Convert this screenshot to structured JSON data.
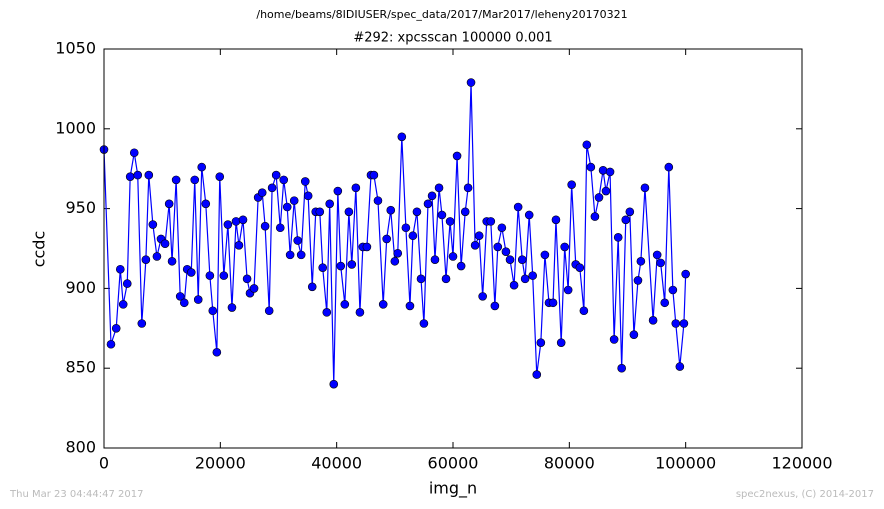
{
  "chart_data": {
    "type": "line",
    "suptitle": "/home/beams/8IDIUSER/spec_data/2017/Mar2017/leheny20170321",
    "title": "#292: xpcsscan 100000 0.001",
    "xlabel": "img_n",
    "ylabel": "ccdc",
    "annotations": [
      "Thu Mar 23 04:44:47 2017",
      "spec2nexus, (C) 2014-2017"
    ],
    "color": "#0000ff",
    "xlim": [
      0,
      120000
    ],
    "xticks": [
      0,
      20000,
      40000,
      60000,
      80000,
      100000,
      120000
    ],
    "ylim": [
      800,
      1050
    ],
    "yticks": [
      800,
      850,
      900,
      950,
      1000,
      1050
    ],
    "x": [
      0,
      1200,
      2100,
      2800,
      3300,
      4000,
      4500,
      5200,
      5800,
      6500,
      7200,
      7700,
      8400,
      9100,
      9800,
      10500,
      11200,
      11700,
      12400,
      13100,
      13800,
      14300,
      15000,
      15600,
      16200,
      16800,
      17500,
      18200,
      18700,
      19400,
      19900,
      20600,
      21300,
      22000,
      22700,
      23200,
      23900,
      24600,
      25100,
      25800,
      26500,
      27200,
      27700,
      28400,
      28900,
      29600,
      30300,
      30900,
      31500,
      32000,
      32700,
      33300,
      33900,
      34600,
      35100,
      35800,
      36400,
      37100,
      37600,
      38300,
      38800,
      39500,
      40200,
      40700,
      41400,
      42100,
      42600,
      43300,
      44000,
      44500,
      45200,
      45900,
      46400,
      47100,
      48000,
      48600,
      49300,
      50000,
      50500,
      51200,
      51900,
      52600,
      53100,
      53800,
      54500,
      55000,
      55700,
      56400,
      56900,
      57600,
      58100,
      58800,
      59500,
      60000,
      60700,
      61400,
      62100,
      62600,
      63100,
      63800,
      64500,
      65100,
      65800,
      66500,
      67200,
      67700,
      68400,
      69100,
      69800,
      70500,
      71200,
      71900,
      72400,
      73100,
      73700,
      74400,
      75100,
      75800,
      76500,
      77200,
      77700,
      78600,
      79200,
      79800,
      80400,
      81100,
      81800,
      82500,
      83000,
      83700,
      84400,
      85100,
      85800,
      86300,
      87000,
      87700,
      88400,
      89000,
      89700,
      90400,
      91100,
      91800,
      92300,
      93000,
      94400,
      95100,
      95700,
      96400,
      97100,
      97800,
      98300,
      99000,
      99700,
      100000
    ],
    "values": [
      987,
      865,
      875,
      912,
      890,
      903,
      970,
      985,
      971,
      878,
      918,
      971,
      940,
      920,
      931,
      928,
      953,
      917,
      968,
      895,
      891,
      912,
      910,
      968,
      893,
      976,
      953,
      908,
      886,
      860,
      970,
      908,
      940,
      888,
      942,
      927,
      943,
      906,
      897,
      900,
      957,
      960,
      939,
      886,
      963,
      971,
      938,
      968,
      951,
      921,
      955,
      930,
      921,
      967,
      958,
      901,
      948,
      948,
      913,
      885,
      953,
      840,
      961,
      914,
      890,
      948,
      915,
      963,
      885,
      926,
      926,
      971,
      971,
      955,
      890,
      931,
      949,
      917,
      922,
      995,
      938,
      889,
      933,
      948,
      906,
      878,
      953,
      958,
      918,
      963,
      946,
      906,
      942,
      920,
      983,
      914,
      948,
      963,
      1029,
      927,
      933,
      895,
      942,
      942,
      889,
      926,
      938,
      923,
      918,
      902,
      951,
      918,
      906,
      946,
      908,
      846,
      866,
      921,
      891,
      891,
      943,
      866,
      926,
      899,
      965,
      915,
      913,
      886,
      990,
      976,
      945,
      957,
      974,
      961,
      973,
      868,
      932,
      850,
      943,
      948,
      871,
      905,
      917,
      963,
      880,
      921,
      916,
      891,
      976,
      899,
      878,
      851,
      878,
      909
    ]
  }
}
